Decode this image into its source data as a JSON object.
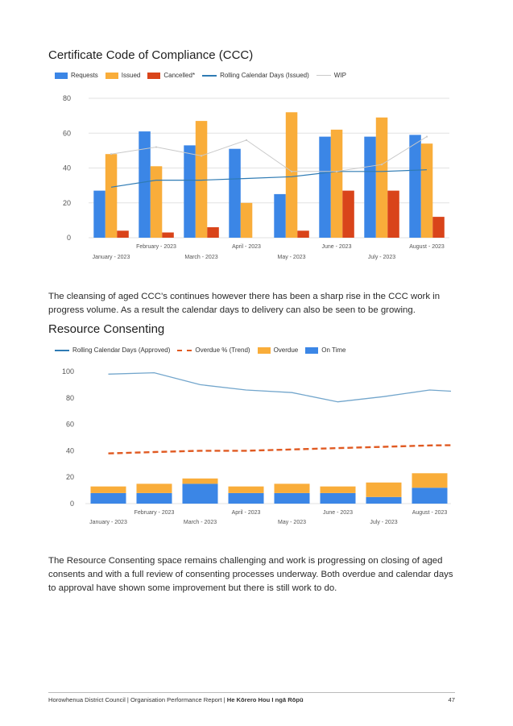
{
  "ccc": {
    "heading": "Certificate Code of Compliance (CCC)",
    "legend": {
      "requests": "Requests",
      "issued": "Issued",
      "cancelled": "Cancelled*",
      "rolling": "Rolling Calendar Days (Issued)",
      "wip": "WIP"
    }
  },
  "ccc_paragraph": "The cleansing of aged CCC’s continues however there has been a sharp rise in the CCC work in progress volume. As a result the calendar days to delivery can also be seen to be growing.",
  "rc": {
    "heading": "Resource Consenting",
    "legend": {
      "rolling": "Rolling Calendar Days (Approved)",
      "overdue_trend": "Overdue % (Trend)",
      "overdue": "Overdue",
      "ontime": "On Time"
    }
  },
  "rc_paragraph": "The Resource Consenting space remains challenging and work is progressing on closing of aged consents and with a full review of consenting processes underway. Both overdue and calendar days to approval have shown some improvement but there is still work to do.",
  "footer": {
    "left": "Horowhenua District Council | Organisation Performance Report | ",
    "left_bold": "He Kōrero Hou I ngā Rōpū",
    "page_number": "47"
  },
  "colors": {
    "requests": "#3b86e6",
    "issued": "#f9ad3a",
    "cancelled": "#d9441a",
    "rolling": "#2f7bb4",
    "wip": "#c9c9c9",
    "overdue_trend": "#e05a22",
    "rc_rolling": "#73a6cc"
  },
  "chart_data": [
    {
      "type": "bar",
      "title": "Certificate Code of Compliance (CCC)",
      "categories": [
        "January - 2023",
        "February - 2023",
        "March - 2023",
        "April - 2023",
        "May - 2023",
        "June - 2023",
        "July - 2023",
        "August - 2023"
      ],
      "series": [
        {
          "name": "Requests",
          "kind": "bar",
          "values": [
            27,
            61,
            53,
            51,
            25,
            58,
            58,
            59
          ]
        },
        {
          "name": "Issued",
          "kind": "bar",
          "values": [
            48,
            41,
            67,
            20,
            72,
            62,
            69,
            54
          ]
        },
        {
          "name": "Cancelled*",
          "kind": "bar",
          "values": [
            4,
            3,
            6,
            0,
            4,
            27,
            27,
            12
          ]
        },
        {
          "name": "Rolling Calendar Days (Issued)",
          "kind": "line",
          "values": [
            29,
            33,
            33,
            34,
            35,
            38,
            38,
            39
          ]
        },
        {
          "name": "WIP",
          "kind": "line",
          "values": [
            48,
            52,
            47,
            56,
            38,
            38,
            42,
            58
          ]
        }
      ],
      "yticks": [
        0,
        20,
        40,
        60,
        80
      ],
      "ylim": [
        0,
        80
      ],
      "legend_position": "top",
      "grid": true
    },
    {
      "type": "bar",
      "title": "Resource Consenting",
      "stacked": true,
      "categories": [
        "January - 2023",
        "February - 2023",
        "March - 2023",
        "April - 2023",
        "May - 2023",
        "June - 2023",
        "July - 2023",
        "August - 2023"
      ],
      "series": [
        {
          "name": "On Time",
          "kind": "bar",
          "values": [
            8,
            8,
            15,
            8,
            8,
            8,
            5,
            12
          ]
        },
        {
          "name": "Overdue",
          "kind": "bar",
          "values": [
            5,
            7,
            4,
            5,
            7,
            5,
            11,
            11
          ]
        },
        {
          "name": "Rolling Calendar Days (Approved)",
          "kind": "line",
          "values": [
            98,
            99,
            90,
            86,
            84,
            77,
            81,
            86
          ]
        },
        {
          "name": "Overdue % (Trend)",
          "kind": "line",
          "values": [
            38,
            39,
            40,
            40,
            41,
            42,
            43,
            44
          ]
        }
      ],
      "yticks": [
        0,
        20,
        40,
        60,
        80,
        100
      ],
      "ylim": [
        0,
        100
      ],
      "legend_position": "top",
      "grid": false
    }
  ]
}
